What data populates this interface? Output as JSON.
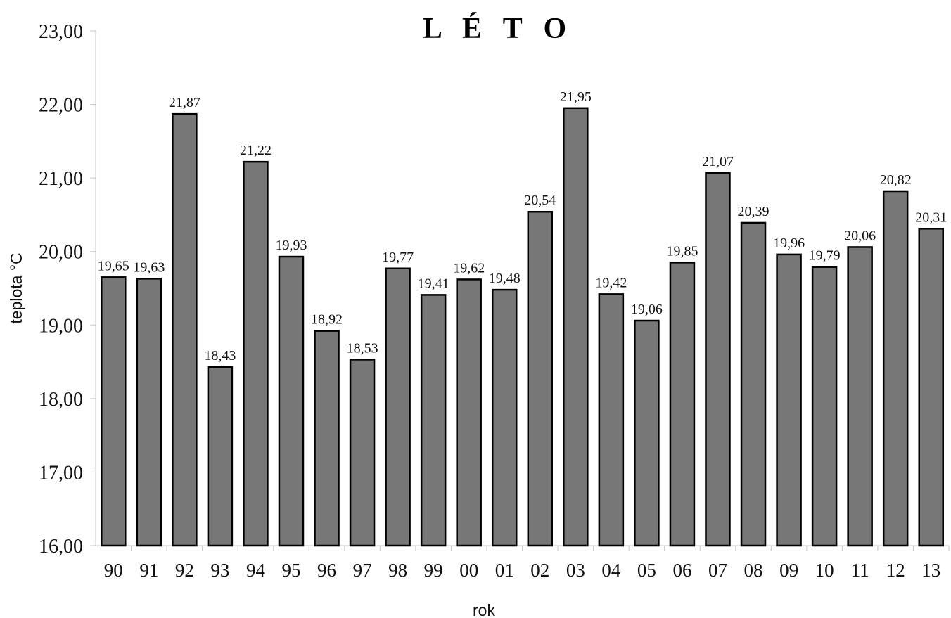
{
  "chart_data": {
    "type": "bar",
    "title": "L É T O",
    "xlabel": "rok",
    "ylabel": "teplota °C",
    "ylim": [
      16,
      23
    ],
    "yticks": [
      "16,00",
      "17,00",
      "18,00",
      "19,00",
      "20,00",
      "21,00",
      "22,00",
      "23,00"
    ],
    "categories": [
      "90",
      "91",
      "92",
      "93",
      "94",
      "95",
      "96",
      "97",
      "98",
      "99",
      "00",
      "01",
      "02",
      "03",
      "04",
      "05",
      "06",
      "07",
      "08",
      "09",
      "10",
      "11",
      "12",
      "13"
    ],
    "values": [
      19.65,
      19.63,
      21.87,
      18.43,
      21.22,
      19.93,
      18.92,
      18.53,
      19.77,
      19.41,
      19.62,
      19.48,
      20.54,
      21.95,
      19.42,
      19.06,
      19.85,
      21.07,
      20.39,
      19.96,
      19.79,
      20.06,
      20.82,
      20.31
    ],
    "value_labels": [
      "19,65",
      "19,63",
      "21,87",
      "18,43",
      "21,22",
      "19,93",
      "18,92",
      "18,53",
      "19,77",
      "19,41",
      "19,62",
      "19,48",
      "20,54",
      "21,95",
      "19,42",
      "19,06",
      "19,85",
      "21,07",
      "20,39",
      "19,96",
      "19,79",
      "20,06",
      "20,82",
      "20,31"
    ],
    "bar_color": "#777777",
    "grid": false,
    "legend": "none"
  }
}
